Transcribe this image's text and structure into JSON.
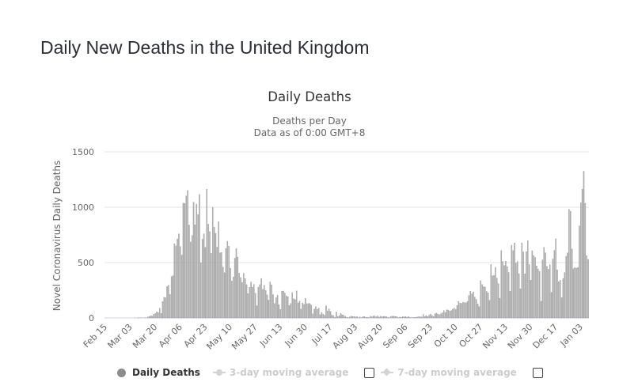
{
  "page": {
    "title": "Daily New Deaths in the United Kingdom"
  },
  "chart_data": {
    "type": "bar",
    "title": "Daily Deaths",
    "subtitle_lines": [
      "Deaths per Day",
      "Data as of 0:00 GMT+8"
    ],
    "xlabel": "",
    "ylabel": "Novel Coronavirus Daily Deaths",
    "ylim": [
      0,
      1500
    ],
    "yticks": [
      0,
      500,
      1000,
      1500
    ],
    "grid": true,
    "start_date": "Feb 15",
    "xtick_labels": [
      "Feb 15",
      "Mar 03",
      "Mar 20",
      "Apr 06",
      "Apr 23",
      "May 10",
      "May 27",
      "Jun 13",
      "Jun 30",
      "Jul 17",
      "Aug 03",
      "Aug 20",
      "Sep 06",
      "Sep 23",
      "Oct 10",
      "Oct 27",
      "Nov 13",
      "Nov 30",
      "Dec 17",
      "Jan 03"
    ],
    "xtick_interval_days": 17,
    "bar_color": "#b3b3b3",
    "bar_edge_color": "#8c8c8c",
    "series": [
      {
        "name": "Daily Deaths",
        "visible": true,
        "values": [
          0,
          0,
          0,
          0,
          0,
          0,
          0,
          0,
          0,
          0,
          0,
          0,
          0,
          0,
          0,
          0,
          0,
          0,
          0,
          0,
          1,
          0,
          1,
          2,
          1,
          2,
          0,
          3,
          1,
          10,
          14,
          20,
          16,
          33,
          40,
          56,
          48,
          87,
          41,
          149,
          186,
          183,
          284,
          294,
          214,
          374,
          382,
          670,
          652,
          714,
          760,
          644,
          568,
          1038,
          1034,
          1103,
          1152,
          839,
          686,
          744,
          1044,
          842,
          1029,
          935,
          1115,
          498,
          711,
          760,
          638,
          1163,
          847,
          780,
          583,
          1000,
          820,
          764,
          639,
          869,
          587,
          591,
          460,
          409,
          627,
          693,
          649,
          449,
          333,
          369,
          540,
          626,
          550,
          406,
          365,
          321,
          404,
          356,
          301,
          219,
          276,
          325,
          278,
          303,
          223,
          110,
          277,
          301,
          357,
          259,
          295,
          248,
          209,
          161,
          325,
          300,
          211,
          130,
          183,
          205,
          119,
          77,
          242,
          243,
          225,
          200,
          191,
          113,
          130,
          229,
          173,
          166,
          245,
          136,
          151,
          80,
          135,
          124,
          176,
          129,
          130,
          130,
          117,
          37,
          80,
          102,
          78,
          89,
          29,
          50,
          35,
          25,
          110,
          64,
          82,
          59,
          25,
          21,
          7,
          53,
          14,
          21,
          42,
          28,
          25,
          15,
          7,
          4,
          10,
          16,
          12,
          13,
          9,
          14,
          3,
          10,
          3,
          11,
          12,
          7,
          7,
          3,
          16,
          9,
          17,
          18,
          11,
          18,
          8,
          15,
          11,
          14,
          14,
          13,
          6,
          2,
          14,
          15,
          16,
          12,
          13,
          4,
          8,
          5,
          12,
          9,
          14,
          7,
          13,
          4,
          3,
          4,
          4,
          6,
          8,
          12,
          10,
          10,
          32,
          12,
          22,
          12,
          25,
          34,
          21,
          14,
          38,
          45,
          34,
          29,
          38,
          47,
          67,
          50,
          73,
          71,
          63,
          67,
          81,
          89,
          76,
          112,
          148,
          135,
          132,
          143,
          138,
          137,
          150,
          203,
          241,
          218,
          234,
          189,
          168,
          127,
          103,
          336,
          303,
          283,
          279,
          240,
          227,
          159,
          483,
          381,
          385,
          457,
          360,
          310,
          178,
          610,
          511,
          474,
          513,
          464,
          411,
          241,
          657,
          609,
          677,
          496,
          510,
          400,
          264,
          677,
          596,
          398,
          599,
          698,
          483,
          341,
          607,
          564,
          547,
          470,
          442,
          421,
          151,
          525,
          637,
          589,
          466,
          440,
          482,
          232,
          532,
          610,
          715,
          434,
          327,
          341,
          183,
          356,
          410,
          557,
          588,
          981,
          964,
          623,
          444,
          455,
          450,
          457,
          830,
          1041,
          1162,
          1325,
          1035,
          563,
          529
        ]
      },
      {
        "name": "3-day moving average",
        "visible": false
      },
      {
        "name": "7-day moving average",
        "visible": false
      }
    ]
  },
  "legend": {
    "items": [
      {
        "label": "Daily Deaths",
        "state": "on",
        "icon": "circle-marker"
      },
      {
        "label": "3-day moving average",
        "state": "off",
        "icon": "line-circle-marker",
        "checkbox_checked": false
      },
      {
        "label": "7-day moving average",
        "state": "off",
        "icon": "line-diamond-marker",
        "checkbox_checked": false
      }
    ]
  }
}
